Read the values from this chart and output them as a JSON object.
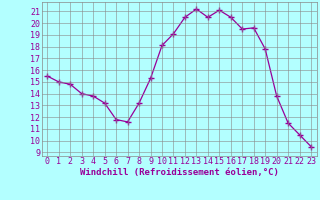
{
  "x": [
    0,
    1,
    2,
    3,
    4,
    5,
    6,
    7,
    8,
    9,
    10,
    11,
    12,
    13,
    14,
    15,
    16,
    17,
    18,
    19,
    20,
    21,
    22,
    23
  ],
  "y": [
    15.5,
    15.0,
    14.8,
    14.0,
    13.8,
    13.2,
    11.8,
    11.6,
    13.2,
    15.3,
    18.1,
    19.1,
    20.5,
    21.2,
    20.5,
    21.1,
    20.5,
    19.5,
    19.6,
    17.8,
    13.8,
    11.5,
    10.5,
    9.5
  ],
  "line_color": "#990099",
  "marker": "+",
  "marker_size": 4,
  "bg_color": "#b3ffff",
  "grid_color": "#888888",
  "xlabel": "Windchill (Refroidissement éolien,°C)",
  "ylabel_ticks": [
    9,
    10,
    11,
    12,
    13,
    14,
    15,
    16,
    17,
    18,
    19,
    20,
    21
  ],
  "ylim": [
    8.7,
    21.8
  ],
  "xlim": [
    -0.5,
    23.5
  ],
  "xlabel_color": "#990099",
  "tick_color": "#990099",
  "label_fontsize": 6.5,
  "tick_fontsize": 6.0
}
